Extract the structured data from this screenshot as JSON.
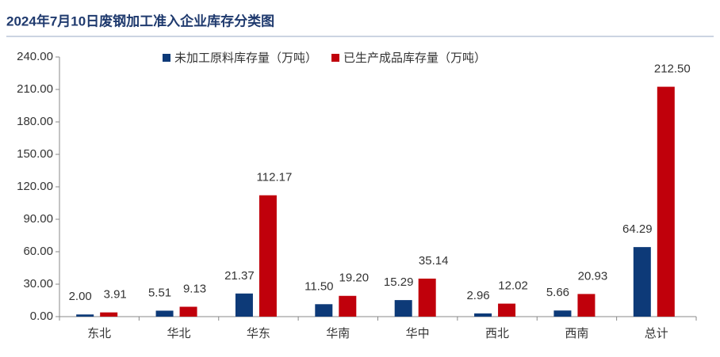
{
  "chart_data": {
    "type": "bar",
    "title": "2024年7月10日废钢加工准入企业库存分类图",
    "categories": [
      "东北",
      "华北",
      "华东",
      "华南",
      "华中",
      "西北",
      "西南",
      "总计"
    ],
    "series": [
      {
        "name": "未加工原料库存量（万吨）",
        "color": "#0d3a78",
        "values": [
          2.0,
          5.51,
          21.37,
          11.5,
          15.29,
          2.96,
          5.66,
          64.29
        ],
        "value_labels": [
          "2.00",
          "5.51",
          "21.37",
          "11.50",
          "15.29",
          "2.96",
          "5.66",
          "64.29"
        ]
      },
      {
        "name": "已生产成品库存量（万吨）",
        "color": "#c0000b",
        "values": [
          3.91,
          9.13,
          112.17,
          19.2,
          35.14,
          12.02,
          20.93,
          212.5
        ],
        "value_labels": [
          "3.91",
          "9.13",
          "112.17",
          "19.20",
          "35.14",
          "12.02",
          "20.93",
          "212.50"
        ]
      }
    ],
    "ylim": [
      0,
      240
    ],
    "yticks": [
      {
        "value": 0,
        "label": "0.00"
      },
      {
        "value": 30,
        "label": "30.00"
      },
      {
        "value": 60,
        "label": "60.00"
      },
      {
        "value": 90,
        "label": "90.00"
      },
      {
        "value": 120,
        "label": "120.00"
      },
      {
        "value": 150,
        "label": "150.00"
      },
      {
        "value": 180,
        "label": "180.00"
      },
      {
        "value": 210,
        "label": "210.00"
      },
      {
        "value": 240,
        "label": "240.00"
      }
    ],
    "grid": false,
    "legend": "top"
  }
}
